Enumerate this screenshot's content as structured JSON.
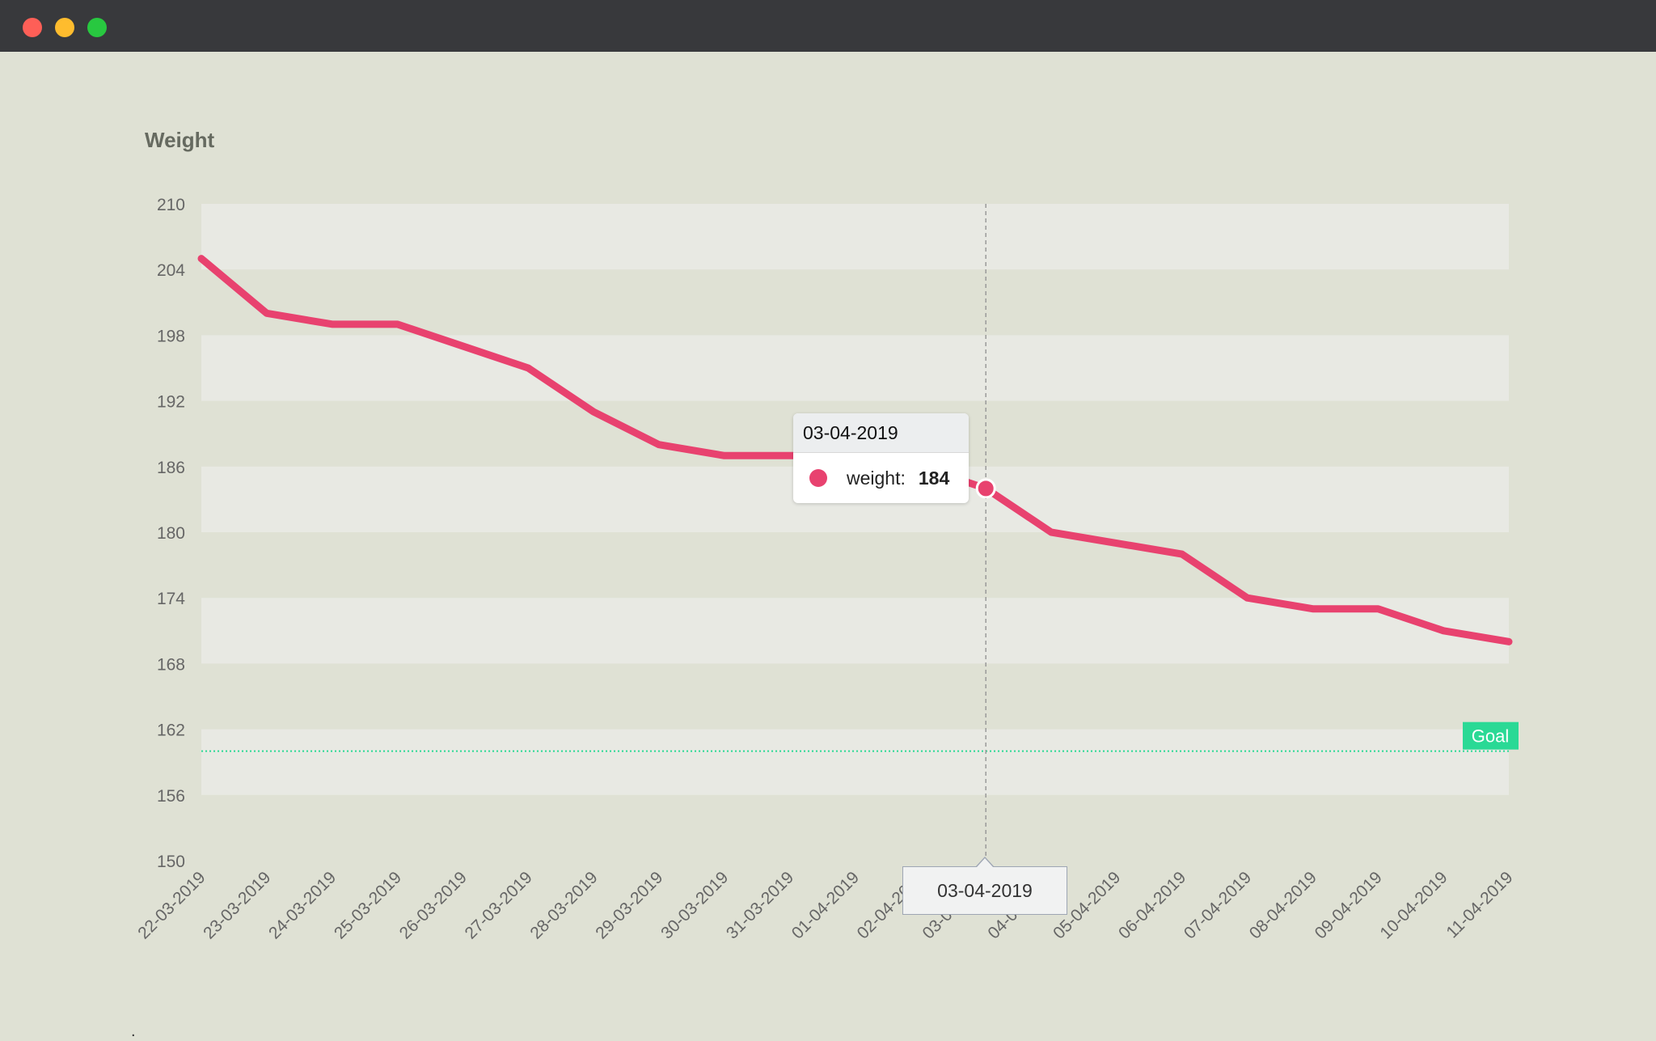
{
  "window": {
    "controls": [
      {
        "name": "close",
        "color": "#fe5f57"
      },
      {
        "name": "minimize",
        "color": "#febc2e"
      },
      {
        "name": "maximize",
        "color": "#28c840"
      }
    ]
  },
  "footer": {
    "stray_text": "."
  },
  "chart_data": {
    "type": "line",
    "title": "Weight",
    "xlabel": "",
    "ylabel": "",
    "categories": [
      "22-03-2019",
      "23-03-2019",
      "24-03-2019",
      "25-03-2019",
      "26-03-2019",
      "27-03-2019",
      "28-03-2019",
      "29-03-2019",
      "30-03-2019",
      "31-03-2019",
      "01-04-2019",
      "02-04-2019",
      "03-04-2019",
      "04-04-2019",
      "05-04-2019",
      "06-04-2019",
      "07-04-2019",
      "08-04-2019",
      "09-04-2019",
      "10-04-2019",
      "11-04-2019"
    ],
    "series": [
      {
        "name": "weight",
        "color": "#e8426f",
        "values": [
          205,
          200,
          199,
          199,
          197,
          195,
          191,
          188,
          187,
          187,
          187,
          186,
          184,
          180,
          179,
          178,
          174,
          173,
          173,
          171,
          170
        ]
      }
    ],
    "ylim": [
      150,
      210
    ],
    "yticks": [
      150,
      156,
      162,
      168,
      174,
      180,
      186,
      192,
      198,
      204,
      210
    ],
    "grid": "alternating horizontal bands",
    "goal": {
      "label": "Goal",
      "value": 160,
      "color": "#2ad995"
    },
    "tooltip": {
      "date": "03-04-2019",
      "series_name": "weight:",
      "value": "184"
    },
    "crosshair": {
      "x": "03-04-2019"
    },
    "colors": {
      "background": "#dfe1d4",
      "band": "#e8e9e3",
      "axis_text": "#666666"
    }
  }
}
